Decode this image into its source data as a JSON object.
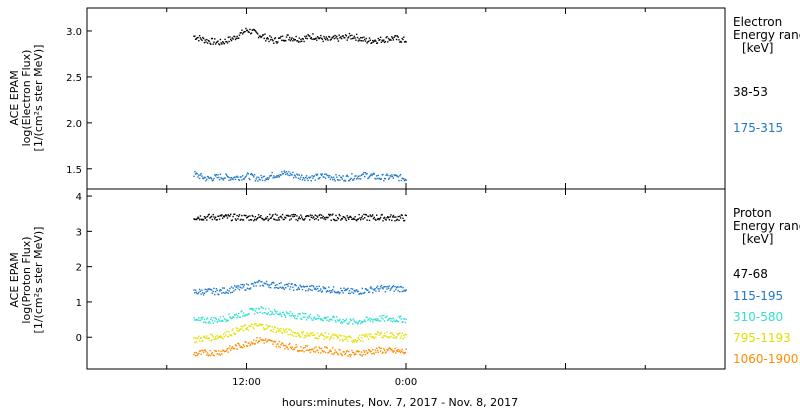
{
  "chart_data": [
    {
      "type": "scatter",
      "panel": "electron",
      "ylabel_lines": [
        "ACE EPAM",
        "log(Electron Flux)",
        "[1/(cm²s ster MeV)]"
      ],
      "yticks": [
        "1.5",
        "2.0",
        "2.5",
        "3.0"
      ],
      "ylim": [
        1.28,
        3.25
      ],
      "legend_title_lines": [
        "Electron",
        "Energy ranges",
        "[keV]"
      ],
      "series": [
        {
          "name": "38-53",
          "color": "#000000",
          "level": 2.92,
          "spread": 0.04,
          "points_x": [
            8,
            9,
            10,
            11,
            12,
            13,
            14,
            15,
            16,
            17,
            18,
            19,
            20,
            21,
            22,
            23,
            24
          ],
          "points_y": [
            2.95,
            2.9,
            2.88,
            2.93,
            3.02,
            2.96,
            2.9,
            2.94,
            2.92,
            2.95,
            2.91,
            2.93,
            2.95,
            2.9,
            2.91,
            2.93,
            2.9
          ]
        },
        {
          "name": "175-315",
          "color": "#1f77c8",
          "level": 1.42,
          "spread": 0.04,
          "points_x": [
            8,
            9,
            10,
            11,
            12,
            13,
            14,
            15,
            16,
            17,
            18,
            19,
            20,
            21,
            22,
            23,
            24
          ],
          "points_y": [
            1.45,
            1.4,
            1.42,
            1.41,
            1.43,
            1.4,
            1.44,
            1.46,
            1.42,
            1.41,
            1.43,
            1.4,
            1.42,
            1.44,
            1.41,
            1.42,
            1.4
          ]
        }
      ]
    },
    {
      "type": "scatter",
      "panel": "proton",
      "ylabel_lines": [
        "ACE EPAM",
        "log(Proton Flux)",
        "[1/(cm²s ster MeV)]"
      ],
      "yticks": [
        "0",
        "1",
        "2",
        "3",
        "4"
      ],
      "ylim": [
        -0.9,
        4.2
      ],
      "legend_title_lines": [
        "Proton",
        "Energy ranges",
        "[keV]"
      ],
      "series": [
        {
          "name": "47-68",
          "color": "#000000",
          "points_x": [
            8,
            10,
            12,
            14,
            16,
            18,
            20,
            22,
            24
          ],
          "points_y": [
            3.42,
            3.42,
            3.41,
            3.42,
            3.41,
            3.42,
            3.41,
            3.41,
            3.4
          ]
        },
        {
          "name": "115-195",
          "color": "#1f77c8",
          "points_x": [
            8,
            10,
            12,
            13,
            14,
            16,
            18,
            20,
            22,
            24
          ],
          "points_y": [
            1.3,
            1.32,
            1.45,
            1.55,
            1.5,
            1.42,
            1.38,
            1.3,
            1.4,
            1.4
          ]
        },
        {
          "name": "310-580",
          "color": "#30e0d0",
          "points_x": [
            8,
            10,
            12,
            13,
            14,
            16,
            18,
            20,
            22,
            24
          ],
          "points_y": [
            0.48,
            0.52,
            0.72,
            0.8,
            0.72,
            0.62,
            0.55,
            0.45,
            0.55,
            0.52
          ]
        },
        {
          "name": "795-1193",
          "color": "#e0e000",
          "points_x": [
            8,
            10,
            12,
            13,
            14,
            16,
            18,
            20,
            22,
            24
          ],
          "points_y": [
            -0.05,
            0.05,
            0.3,
            0.35,
            0.25,
            0.1,
            0.05,
            -0.05,
            0.1,
            0.05
          ]
        },
        {
          "name": "1060-1900",
          "color": "#ff8c00",
          "points_x": [
            8,
            10,
            12,
            13,
            14,
            16,
            18,
            20,
            22,
            24
          ],
          "points_y": [
            -0.45,
            -0.4,
            -0.15,
            -0.05,
            -0.15,
            -0.3,
            -0.35,
            -0.45,
            -0.35,
            -0.4
          ]
        }
      ]
    }
  ],
  "x_axis": {
    "xlabel": "hours:minutes, Nov.  7, 2017 - Nov.  8, 2017",
    "ticks": [
      "12:00",
      "0:00"
    ]
  }
}
